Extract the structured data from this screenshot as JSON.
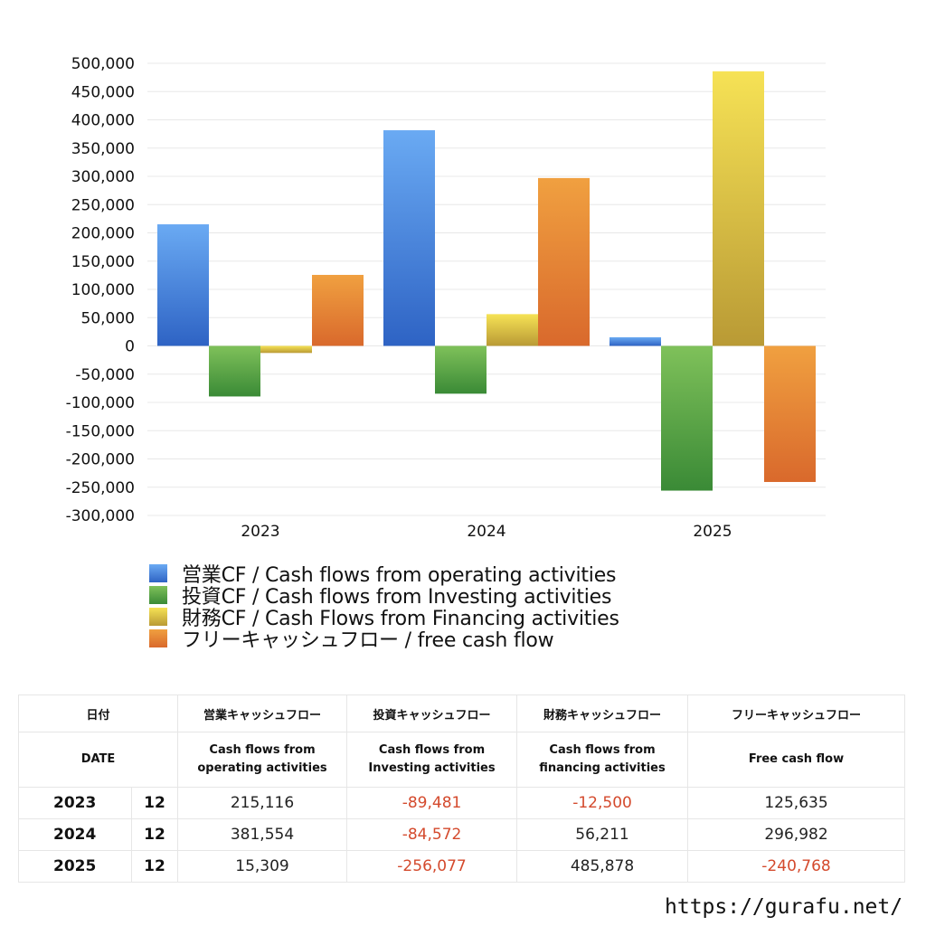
{
  "chart_data": {
    "type": "bar",
    "categories": [
      "2023",
      "2024",
      "2025"
    ],
    "series": [
      {
        "name": "営業CF / Cash flows from operating activities",
        "values": [
          215116,
          381554,
          15309
        ],
        "color_top": "#6aaaf3",
        "color_bottom": "#2e63c4"
      },
      {
        "name": "投資CF / Cash flows from Investing activities",
        "values": [
          -89481,
          -84572,
          -256077
        ],
        "color_top": "#7fc15a",
        "color_bottom": "#3a8a36"
      },
      {
        "name": "財務CF / Cash Flows from Financing activities",
        "values": [
          -12500,
          56211,
          485878
        ],
        "color_top": "#f6e255",
        "color_bottom": "#b99a35"
      },
      {
        "name": "フリーキャッシュフロー / free cash flow",
        "values": [
          125635,
          296982,
          -240768
        ],
        "color_top": "#f0a040",
        "color_bottom": "#d9692c"
      }
    ],
    "yticks": [
      "500,000",
      "450,000",
      "400,000",
      "350,000",
      "300,000",
      "250,000",
      "200,000",
      "150,000",
      "100,000",
      "50,000",
      "0",
      "-50,000",
      "-100,000",
      "-150,000",
      "-200,000",
      "-250,000",
      "-300,000"
    ],
    "ylim": [
      -300000,
      500000
    ],
    "grid": true,
    "legend_position": "bottom-left"
  },
  "table": {
    "header": {
      "date_jp": "日付",
      "operating_jp": "営業キャッシュフロー",
      "investing_jp": "投資キャッシュフロー",
      "financing_jp": "財務キャッシュフロー",
      "free_jp": "フリーキャッシュフロー"
    },
    "subheader": {
      "date_en": "DATE",
      "operating_en_1": "Cash flows from",
      "operating_en_2": "operating activities",
      "investing_en_1": "Cash flows from",
      "investing_en_2": "Investing activities",
      "financing_en_1": "Cash flows from",
      "financing_en_2": "financing activities",
      "free_en": "Free cash flow"
    },
    "rows": [
      {
        "year": "2023",
        "month": "12",
        "operating": "215,116",
        "investing": "-89,481",
        "financing": "-12,500",
        "free": "125,635"
      },
      {
        "year": "2024",
        "month": "12",
        "operating": "381,554",
        "investing": "-84,572",
        "financing": "56,211",
        "free": "296,982"
      },
      {
        "year": "2025",
        "month": "12",
        "operating": "15,309",
        "investing": "-256,077",
        "financing": "485,878",
        "free": "-240,768"
      }
    ],
    "negative_color": "#d44a2d"
  },
  "site_url": "https://gurafu.net/"
}
